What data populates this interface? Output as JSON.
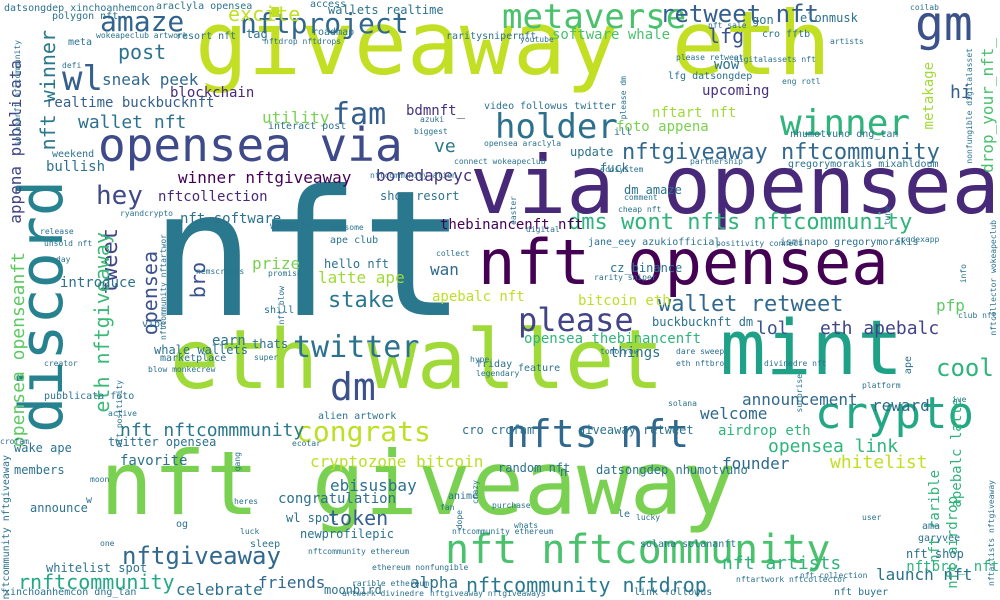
{
  "words": [
    {
      "text": "nft",
      "color": "#2a788e"
    },
    {
      "text": "giveaway eth",
      "color": "#c2df23"
    },
    {
      "text": "nft giveaway",
      "color": "#7ad151"
    },
    {
      "text": "via opensea",
      "color": "#482878"
    },
    {
      "text": "eth wallet",
      "color": "#a0da39"
    },
    {
      "text": "nft opensea",
      "color": "#440154"
    },
    {
      "text": "discord",
      "color": "#26828e"
    },
    {
      "text": "mint",
      "color": "#1fa187"
    },
    {
      "text": "opensea via",
      "color": "#3e4a89"
    },
    {
      "text": "gm",
      "color": "#3b528b"
    },
    {
      "text": "crypto",
      "color": "#22a884"
    },
    {
      "text": "nfts nft",
      "color": "#31688e"
    },
    {
      "text": "nft nftcommunity",
      "color": "#4ac16d"
    },
    {
      "text": "metaverse",
      "color": "#4ac16d"
    },
    {
      "text": "holder",
      "color": "#2d708e"
    },
    {
      "text": "winner",
      "color": "#2fb47c"
    },
    {
      "text": "please",
      "color": "#414487"
    },
    {
      "text": "twitter",
      "color": "#2c728e"
    },
    {
      "text": "dm",
      "color": "#3b528b"
    },
    {
      "text": "amaze",
      "color": "#32648e"
    },
    {
      "text": "wl",
      "color": "#355f8d"
    },
    {
      "text": "fam",
      "color": "#35608d"
    },
    {
      "text": "congrats",
      "color": "#bddf26"
    },
    {
      "text": "nftproject",
      "color": "#31688e"
    },
    {
      "text": "retweet nft",
      "color": "#35608d"
    },
    {
      "text": "nftgiveaway nftcommunity",
      "color": "#31688e"
    },
    {
      "text": "dms wont nfts nftcommunity",
      "color": "#2fb47c"
    },
    {
      "text": "wallet retweet",
      "color": "#31688e"
    },
    {
      "text": "cool",
      "color": "#2fb47c"
    },
    {
      "text": "nftgiveaway",
      "color": "#31688e"
    },
    {
      "text": "nftcommunity nftdrop",
      "color": "#2a788e"
    },
    {
      "text": "hey",
      "color": "#3e4a89"
    },
    {
      "text": "stake",
      "color": "#2a788e"
    },
    {
      "text": "tweet",
      "color": "#414487"
    },
    {
      "text": "opensea",
      "color": "#3b528b"
    },
    {
      "text": "nft winner",
      "color": "#2a788e"
    },
    {
      "text": "wallet nft",
      "color": "#2c728e"
    },
    {
      "text": "eth nftgiveaway",
      "color": "#3aba76"
    },
    {
      "text": "opensea openseanft",
      "color": "#5ec962"
    },
    {
      "text": "bro",
      "color": "#3b528b"
    },
    {
      "text": "token",
      "color": "#355f8d"
    },
    {
      "text": "lfg",
      "color": "#3b528b"
    },
    {
      "text": "post",
      "color": "#2c728e"
    },
    {
      "text": "lol",
      "color": "#3b528b"
    },
    {
      "text": "eth apebalc",
      "color": "#414487"
    },
    {
      "text": "welcome",
      "color": "#31688e"
    },
    {
      "text": "opensea link",
      "color": "#2fb47c"
    },
    {
      "text": "whitelist",
      "color": "#c2df23"
    },
    {
      "text": "nft artists",
      "color": "#2fb47c"
    },
    {
      "text": "launch nft",
      "color": "#2c728e"
    },
    {
      "text": "friends",
      "color": "#31688e"
    },
    {
      "text": "celebrate",
      "color": "#2c728e"
    },
    {
      "text": "alpha",
      "color": "#2c728e"
    },
    {
      "text": "rnftcommunity",
      "color": "#22a884"
    },
    {
      "text": "nft nftcommmunity",
      "color": "#2a788e"
    },
    {
      "text": "cryptozone bitcoin",
      "color": "#bddf26"
    },
    {
      "text": "excite",
      "color": "#c2df23"
    },
    {
      "text": "sneak peek",
      "color": "#31688e"
    },
    {
      "text": "winner nftgiveaway",
      "color": "#440154"
    },
    {
      "text": "nftcollection",
      "color": "#482878"
    },
    {
      "text": "nft software",
      "color": "#2c728e"
    },
    {
      "text": "blockchain",
      "color": "#482878"
    },
    {
      "text": "utility",
      "color": "#7ad151"
    },
    {
      "text": "realtime buckbucknft",
      "color": "#35608d"
    },
    {
      "text": "boredapeyc",
      "color": "#46327e"
    },
    {
      "text": "thebinancenft nft",
      "color": "#440154"
    },
    {
      "text": "software whale",
      "color": "#4ac16d"
    },
    {
      "text": "foto appena",
      "color": "#7ad151"
    },
    {
      "text": "nftart nft",
      "color": "#a0da39"
    },
    {
      "text": "upcoming",
      "color": "#46327e"
    },
    {
      "text": "metakage",
      "color": "#a0da39"
    },
    {
      "text": "hi",
      "color": "#35608d"
    },
    {
      "text": "drop_your_nft_",
      "color": "#4ac16d"
    },
    {
      "text": "appena pubblicata",
      "color": "#414487"
    },
    {
      "text": "bdmnft_",
      "color": "#46327e"
    },
    {
      "text": "ve",
      "color": "#2a788e"
    },
    {
      "text": "wan",
      "color": "#31688e"
    },
    {
      "text": "prize",
      "color": "#7ad151"
    },
    {
      "text": "latte ape",
      "color": "#a0da39"
    },
    {
      "text": "apebalc nft",
      "color": "#bddf26"
    },
    {
      "text": "bitcoin eth",
      "color": "#bddf26"
    },
    {
      "text": "pfp",
      "color": "#5ec962"
    },
    {
      "text": "announcement",
      "color": "#31688e"
    },
    {
      "text": "reward",
      "color": "#31688e"
    },
    {
      "text": "founder",
      "color": "#31688e"
    },
    {
      "text": "favorite",
      "color": "#2c728e"
    },
    {
      "text": "ebisusbay",
      "color": "#2c728e"
    },
    {
      "text": "congratulation",
      "color": "#2c728e"
    },
    {
      "text": "wl spot",
      "color": "#2c728e"
    },
    {
      "text": "newprofilepic",
      "color": "#2c728e"
    },
    {
      "text": "airdrop eth",
      "color": "#2fb47c"
    },
    {
      "text": "apebalc latte",
      "color": "#2fb47c"
    },
    {
      "text": "nft rarible",
      "color": "#2fb47c"
    },
    {
      "text": "nft airdrop",
      "color": "#2fb47c"
    },
    {
      "text": "nftbro_ nft",
      "color": "#2fb47c"
    },
    {
      "text": "nft shop",
      "color": "#2c728e"
    },
    {
      "text": "things",
      "color": "#2c728e"
    },
    {
      "text": "opensea thebinancenft",
      "color": "#2fb47c"
    },
    {
      "text": "earn",
      "color": "#2c728e"
    },
    {
      "text": "thats",
      "color": "#2c728e"
    },
    {
      "text": "whale wallets",
      "color": "#2c728e"
    },
    {
      "text": "introduce",
      "color": "#2c728e"
    },
    {
      "text": "hello nft",
      "color": "#2c728e"
    },
    {
      "text": "ape club",
      "color": "#2c728e"
    },
    {
      "text": "website",
      "color": "#2c728e"
    },
    {
      "text": "buckbucknft dm",
      "color": "#2c728e"
    },
    {
      "text": "cz_binance",
      "color": "#2c728e"
    },
    {
      "text": "jane_eey azukiofficial",
      "color": "#2c728e"
    },
    {
      "text": "isminapo gregorymorakis",
      "color": "#2c728e"
    },
    {
      "text": "gregorymorakis mixahldoum",
      "color": "#2c728e"
    },
    {
      "text": "nhumotvuno dng_tan",
      "color": "#2c728e"
    },
    {
      "text": "update",
      "color": "#2c728e"
    },
    {
      "text": "fuck",
      "color": "#2c728e"
    },
    {
      "text": "dm amaze",
      "color": "#2c728e"
    },
    {
      "text": "shop resort",
      "color": "#2c728e"
    },
    {
      "text": "interact post",
      "color": "#2c728e"
    },
    {
      "text": "video",
      "color": "#2c728e"
    },
    {
      "text": "followus twitter",
      "color": "#2c728e"
    },
    {
      "text": "lfg datsongdep",
      "color": "#2c728e"
    },
    {
      "text": "wow",
      "color": "#2c728e"
    },
    {
      "text": "elonmusk",
      "color": "#2c728e"
    },
    {
      "text": "gon",
      "color": "#2c728e"
    },
    {
      "text": "cro fftb",
      "color": "#2c728e"
    },
    {
      "text": "tag",
      "color": "#2c728e"
    },
    {
      "text": "wallets realtime",
      "color": "#2c728e"
    },
    {
      "text": "datsongdep xinchoanhemcon",
      "color": "#2c728e"
    },
    {
      "text": "araclyla opensea",
      "color": "#2c728e"
    },
    {
      "text": "access",
      "color": "#2c728e"
    },
    {
      "text": "meta",
      "color": "#2c728e"
    },
    {
      "text": "bullish",
      "color": "#2c728e"
    },
    {
      "text": "weekend",
      "color": "#2c728e"
    },
    {
      "text": "wake ape",
      "color": "#2c728e"
    },
    {
      "text": "members",
      "color": "#2c728e"
    },
    {
      "text": "announce",
      "color": "#2c728e"
    },
    {
      "text": "whitelist spot",
      "color": "#2c728e"
    },
    {
      "text": "xinchoanhemcon dng_tan",
      "color": "#2c728e"
    },
    {
      "text": "nftcommunity nftgiveaway",
      "color": "#2c728e"
    },
    {
      "text": "twitter opensea",
      "color": "#2c728e"
    },
    {
      "text": "moonbird",
      "color": "#2c728e"
    },
    {
      "text": "random nft",
      "color": "#2c728e"
    },
    {
      "text": "datsongdep nhumotvuno",
      "color": "#2c728e"
    },
    {
      "text": "giveaway retweet",
      "color": "#2c728e"
    },
    {
      "text": "cro crofam",
      "color": "#2c728e"
    },
    {
      "text": "alien artwork",
      "color": "#2c728e"
    },
    {
      "text": "shill",
      "color": "#2c728e"
    },
    {
      "text": "marketplace",
      "color": "#2c728e"
    },
    {
      "text": "sleep",
      "color": "#2c728e"
    },
    {
      "text": "solana solananft",
      "color": "#2c728e"
    },
    {
      "text": "ama",
      "color": "#2c728e"
    },
    {
      "text": "garyvee",
      "color": "#2c728e"
    },
    {
      "text": "pubblicata foto",
      "color": "#2c728e"
    },
    {
      "text": "polygon nft",
      "color": "#2c728e"
    },
    {
      "text": "wokeapeclub artwork",
      "color": "#2c728e"
    },
    {
      "text": "resort nft",
      "color": "#2c728e"
    },
    {
      "text": "raritysnipernft",
      "color": "#2c728e"
    },
    {
      "text": "youtube",
      "color": "#2c728e"
    },
    {
      "text": "nft sale",
      "color": "#2c728e"
    },
    {
      "text": "please retweet",
      "color": "#2c728e"
    },
    {
      "text": "artists",
      "color": "#2c728e"
    },
    {
      "text": "nftdrop nftdrops",
      "color": "#2c728e"
    },
    {
      "text": "defi",
      "color": "#2c728e"
    },
    {
      "text": "biggest",
      "color": "#2c728e"
    },
    {
      "text": "opensea araclyla",
      "color": "#2c728e"
    },
    {
      "text": "connect wokeapeclub",
      "color": "#2c728e"
    },
    {
      "text": "nftcommunity alien",
      "color": "#2c728e"
    },
    {
      "text": "partnership",
      "color": "#2c728e"
    },
    {
      "text": "cheap nft",
      "color": "#2c728e"
    },
    {
      "text": "comment",
      "color": "#2c728e"
    },
    {
      "text": "rarity sniper",
      "color": "#2c728e"
    },
    {
      "text": "positivity connect",
      "color": "#2c728e"
    },
    {
      "text": "crodexapp",
      "color": "#2c728e"
    },
    {
      "text": "collect",
      "color": "#2c728e"
    },
    {
      "text": "awesome",
      "color": "#2c728e"
    },
    {
      "text": "promise",
      "color": "#2c728e"
    },
    {
      "text": "nemscronos",
      "color": "#2c728e"
    },
    {
      "text": "ryandcrypto",
      "color": "#2c728e"
    },
    {
      "text": "release",
      "color": "#2c728e"
    },
    {
      "text": "unsold nft",
      "color": "#2c728e"
    },
    {
      "text": "day",
      "color": "#2c728e"
    },
    {
      "text": "vibe",
      "color": "#2c728e"
    },
    {
      "text": "creator",
      "color": "#2c728e"
    },
    {
      "text": "super",
      "color": "#2c728e"
    },
    {
      "text": "blow monkecrew",
      "color": "#2c728e"
    },
    {
      "text": "hype",
      "color": "#2c728e"
    },
    {
      "text": "tomorrow",
      "color": "#2c728e"
    },
    {
      "text": "feature",
      "color": "#2c728e"
    },
    {
      "text": "dare sweep",
      "color": "#2c728e"
    },
    {
      "text": "eth nftbro_",
      "color": "#2c728e"
    },
    {
      "text": "divinedre nft",
      "color": "#2c728e"
    },
    {
      "text": "club nft",
      "color": "#2c728e"
    },
    {
      "text": "info",
      "color": "#2c728e"
    },
    {
      "text": "crofam",
      "color": "#2c728e"
    },
    {
      "text": "ecotar",
      "color": "#2c728e"
    },
    {
      "text": "anime",
      "color": "#2c728e"
    },
    {
      "text": "fan",
      "color": "#2c728e"
    },
    {
      "text": "purchase",
      "color": "#2c728e"
    },
    {
      "text": "lucky",
      "color": "#2c728e"
    },
    {
      "text": "user",
      "color": "#2c728e"
    },
    {
      "text": "heres",
      "color": "#2c728e"
    },
    {
      "text": "luck",
      "color": "#2c728e"
    },
    {
      "text": "dope",
      "color": "#2c728e"
    },
    {
      "text": "whats",
      "color": "#2c728e"
    },
    {
      "text": "crazy",
      "color": "#2c728e"
    },
    {
      "text": "ethereum nonfungible",
      "color": "#2c728e"
    },
    {
      "text": "artwork divinedre",
      "color": "#2c728e"
    },
    {
      "text": "nftcommunity ethereum",
      "color": "#2c728e"
    },
    {
      "text": "nftgiveaway nftgiveaways",
      "color": "#2c728e"
    },
    {
      "text": "link followus",
      "color": "#2c728e"
    },
    {
      "text": "nft buyer",
      "color": "#2c728e"
    },
    {
      "text": "nftartwork nftcollector",
      "color": "#2c728e"
    },
    {
      "text": "rarible ethereum",
      "color": "#2c728e"
    },
    {
      "text": "solana",
      "color": "#2c728e"
    },
    {
      "text": "ive",
      "color": "#2c728e"
    },
    {
      "text": "platform",
      "color": "#2c728e"
    },
    {
      "text": "surprise",
      "color": "#2c728e"
    },
    {
      "text": "ape",
      "color": "#2c728e"
    },
    {
      "text": "digitalassets nft",
      "color": "#2c728e"
    },
    {
      "text": "nonfungible digitalasset",
      "color": "#2c728e"
    },
    {
      "text": "eng rotl",
      "color": "#2c728e"
    },
    {
      "text": "coilab",
      "color": "#2c728e"
    },
    {
      "text": "nftcollector wokeapeclub",
      "color": "#2c728e"
    },
    {
      "text": "nftartists nftgiveaway",
      "color": "#2c728e"
    },
    {
      "text": "legendary",
      "color": "#2c728e"
    },
    {
      "text": "friday",
      "color": "#2c728e"
    },
    {
      "text": "digital",
      "color": "#2c728e"
    },
    {
      "text": "easter",
      "color": "#2c728e"
    },
    {
      "text": "solananft nftcommunity",
      "color": "#2c728e"
    },
    {
      "text": "ill",
      "color": "#2c728e"
    },
    {
      "text": "azuki",
      "color": "#2c728e"
    },
    {
      "text": "tune",
      "color": "#2c728e"
    },
    {
      "text": "roadmap",
      "color": "#2c728e"
    },
    {
      "text": "le",
      "color": "#2c728e"
    },
    {
      "text": "og",
      "color": "#2c728e"
    },
    {
      "text": "w",
      "color": "#2c728e"
    },
    {
      "text": "n",
      "color": "#2c728e"
    },
    {
      "text": "one",
      "color": "#2c728e"
    },
    {
      "text": "active",
      "color": "#2c728e"
    },
    {
      "text": "nft positivity",
      "color": "#2c728e"
    },
    {
      "text": "nftcommunity nftartwor",
      "color": "#2c728e"
    },
    {
      "text": "nft blow",
      "color": "#2c728e"
    },
    {
      "text": "gang",
      "color": "#2c728e"
    },
    {
      "text": "moon",
      "color": "#2c728e"
    },
    {
      "text": "ecosystem",
      "color": "#2c728e"
    },
    {
      "text": "please dm",
      "color": "#2c728e"
    },
    {
      "text": "nftcommunity ethereum",
      "color": "#2c728e"
    },
    {
      "text": "nft collection",
      "color": "#2c728e"
    }
  ]
}
